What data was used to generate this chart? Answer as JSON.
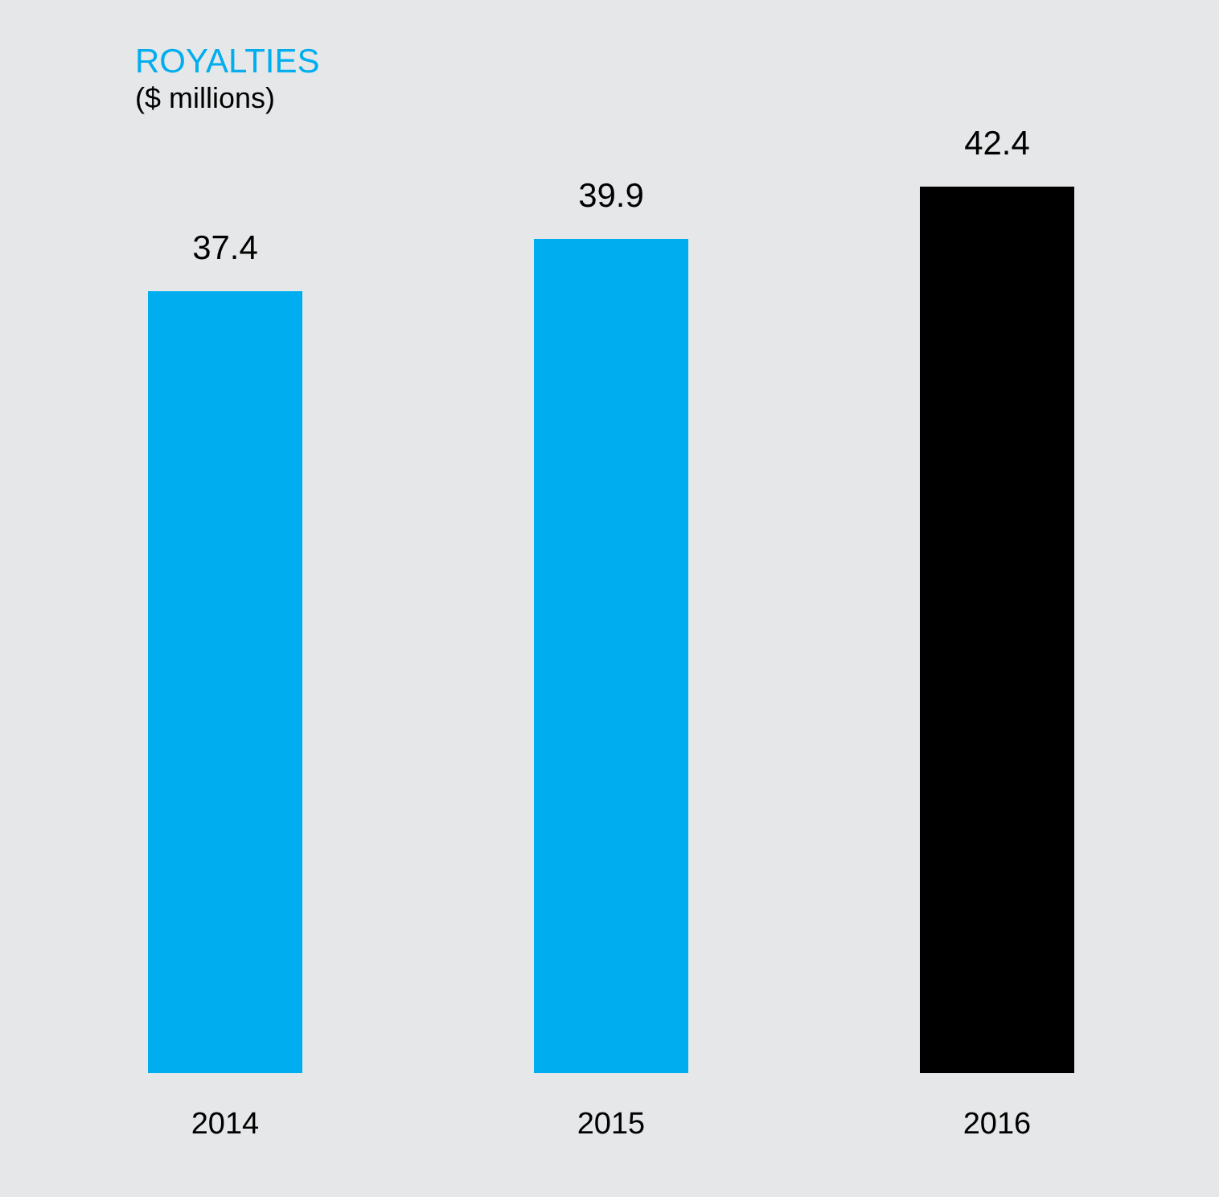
{
  "chart_data": {
    "type": "bar",
    "title": "ROYALTIES",
    "subtitle": "($ millions)",
    "categories": [
      "2014",
      "2015",
      "2016"
    ],
    "values": [
      37.4,
      39.9,
      42.4
    ],
    "colors": [
      "#00aeef",
      "#00aeef",
      "#000000"
    ],
    "tick_labels": "x",
    "grid": false,
    "data_labels": true
  }
}
